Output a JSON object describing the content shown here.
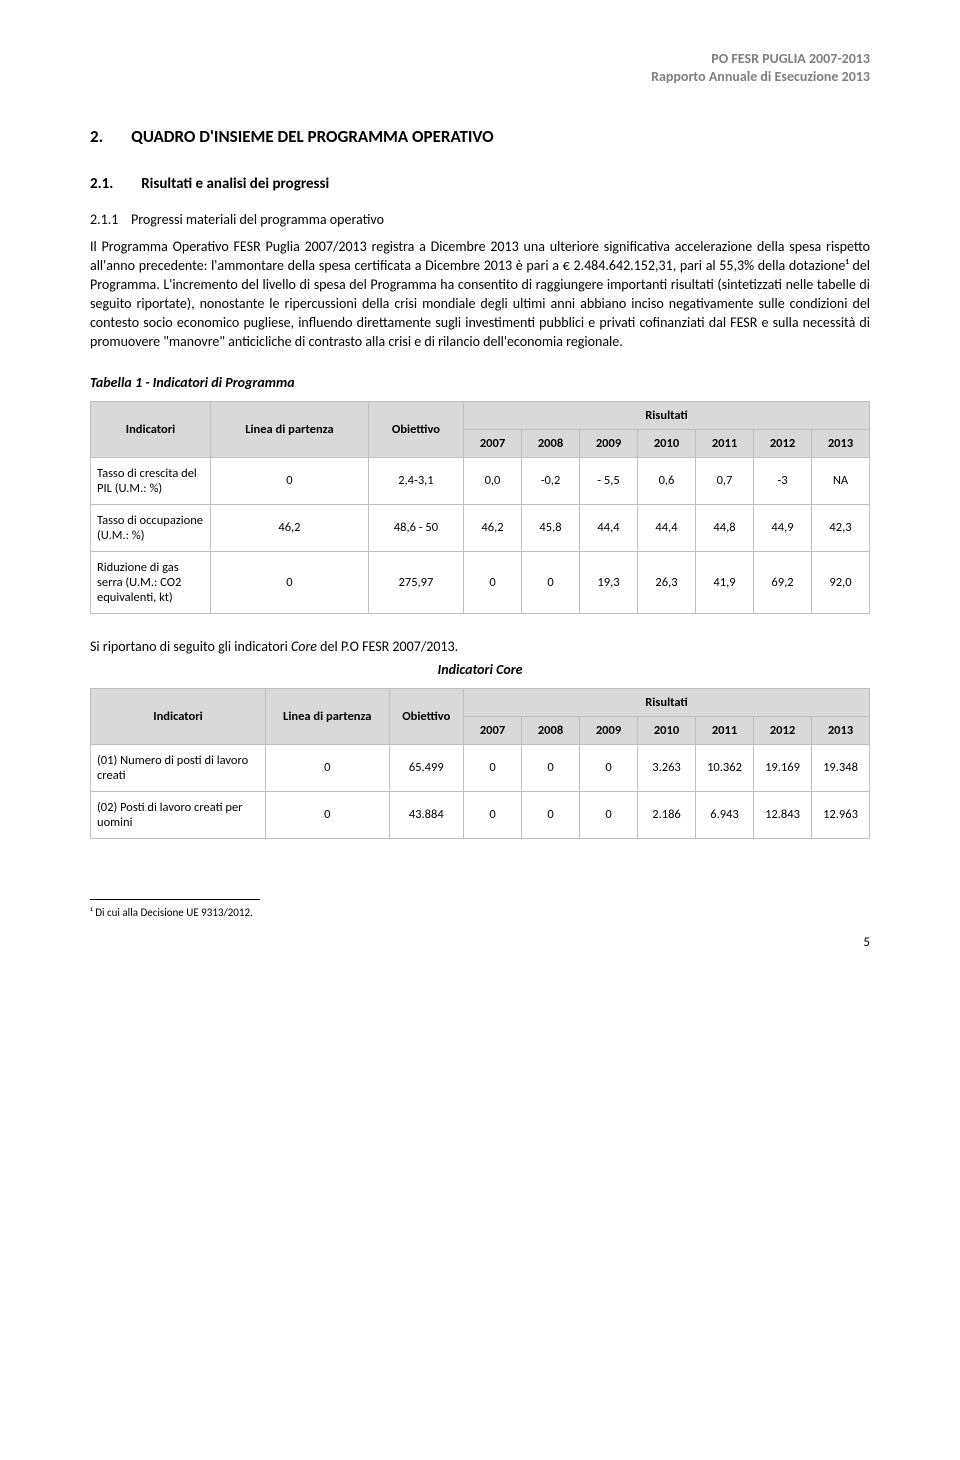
{
  "header": {
    "line1": "PO FESR PUGLIA 2007-2013",
    "line2": "Rapporto Annuale di Esecuzione 2013"
  },
  "sec2": {
    "num": "2.",
    "title": "QUADRO D'INSIEME DEL PROGRAMMA OPERATIVO"
  },
  "sec21": {
    "num": "2.1.",
    "title": "Risultati e analisi dei progressi"
  },
  "sec211": {
    "num": "2.1.1",
    "title": "Progressi materiali del programma operativo"
  },
  "para": "Il Programma Operativo FESR Puglia 2007/2013 registra a Dicembre 2013 una ulteriore significativa accelerazione della spesa rispetto all'anno precedente: l'ammontare della spesa certificata a Dicembre 2013 è pari a € 2.484.642.152,31, pari al 55,3% della dotazione¹ del Programma. L'incremento del livello di spesa del Programma ha consentito di raggiungere importanti risultati (sintetizzati nelle tabelle di seguito riportate), nonostante le ripercussioni della crisi mondiale degli ultimi anni abbiano inciso negativamente sulle condizioni del contesto socio economico pugliese, influendo direttamente sugli investimenti pubblici e privati cofinanziati dal FESR e sulla necessità di promuovere \"manovre\" anticicliche di contrasto alla crisi e di rilancio dell'economia regionale.",
  "table1": {
    "title": "Tabella 1 - Indicatori di Programma",
    "head": {
      "indicatori": "Indicatori",
      "linea": "Linea di partenza",
      "obiettivo": "Obiettivo",
      "risultati": "Risultati"
    },
    "years": [
      "2007",
      "2008",
      "2009",
      "2010",
      "2011",
      "2012",
      "2013"
    ],
    "rows": [
      {
        "label": "Tasso di crescita del PIL (U.M.: %)",
        "linea": "0",
        "ob": "2,4-3,1",
        "v": [
          "0,0",
          "-0,2",
          "- 5,5",
          "0,6",
          "0,7",
          "-3",
          "NA"
        ]
      },
      {
        "label": "Tasso di occupazione (U.M.: %)",
        "linea": "46,2",
        "ob": "48,6 - 50",
        "v": [
          "46,2",
          "45,8",
          "44,4",
          "44,4",
          "44,8",
          "44,9",
          "42,3"
        ]
      },
      {
        "label": "Riduzione di gas serra (U.M.: CO2 equivalenti, kt)",
        "linea": "0",
        "ob": "275,97",
        "v": [
          "0",
          "0",
          "19,3",
          "26,3",
          "41,9",
          "69,2",
          "92,0"
        ]
      }
    ]
  },
  "inter": "Si riportano di seguito gli indicatori Core del P.O FESR 2007/2013.",
  "core_title": "Indicatori Core",
  "table2": {
    "head": {
      "indicatori": "Indicatori",
      "linea": "Linea di partenza",
      "obiettivo": "Obiettivo",
      "risultati": "Risultati"
    },
    "years": [
      "2007",
      "2008",
      "2009",
      "2010",
      "2011",
      "2012",
      "2013"
    ],
    "rows": [
      {
        "label": "(01) Numero di posti di lavoro creati",
        "linea": "0",
        "ob": "65.499",
        "v": [
          "0",
          "0",
          "0",
          "3.263",
          "10.362",
          "19.169",
          "19.348"
        ]
      },
      {
        "label": "(02) Posti di lavoro creati per uomini",
        "linea": "0",
        "ob": "43.884",
        "v": [
          "0",
          "0",
          "0",
          "2.186",
          "6.943",
          "12.843",
          "12.963"
        ]
      }
    ]
  },
  "footnote": "¹ Di cui alla Decisione UE 9313/2012.",
  "pagenum": "5"
}
